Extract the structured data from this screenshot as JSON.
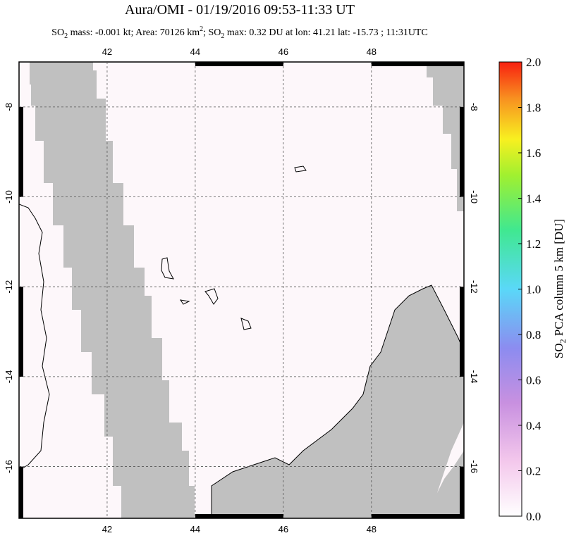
{
  "chart_data": {
    "type": "map",
    "title": "Aura/OMI - 01/19/2016 09:53-11:33 UT",
    "subtitle_parts": [
      "SO",
      "2",
      " mass: -0.001 kt; Area: 70126 km",
      "2",
      "; SO",
      "2",
      " max: 0.32 DU at lon: 41.21 lat: -15.73 ; 11:31UTC"
    ],
    "xlim": [
      40.0,
      50.1
    ],
    "ylim": [
      -17.15,
      -7.0
    ],
    "xticks": [
      42,
      44,
      46,
      48
    ],
    "yticks": [
      -8,
      -10,
      -12,
      -14,
      -16
    ],
    "grid": true,
    "colorbar": {
      "label_parts": [
        "SO",
        "2",
        " PCA column 5 km [DU]"
      ],
      "lim": [
        0,
        2
      ],
      "ticks": [
        {
          "value": 0,
          "label": "0.0"
        },
        0.2,
        0.4,
        0.6,
        0.8,
        {
          "value": 1,
          "label": "1.0"
        },
        1.2,
        1.4,
        1.6,
        1.8,
        {
          "value": 2,
          "label": "2.0"
        }
      ]
    }
  }
}
